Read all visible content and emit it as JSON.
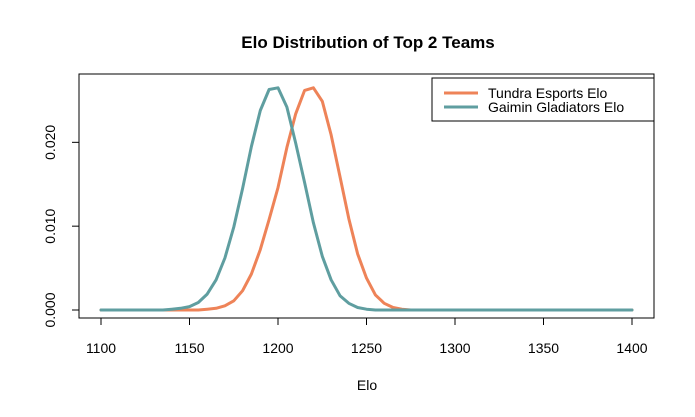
{
  "chart_data": {
    "type": "line",
    "title": "Elo Distribution of Top 2 Teams",
    "xlabel": "Elo",
    "ylabel": "",
    "xlim": [
      1100,
      1400
    ],
    "ylim": [
      0,
      0.0266
    ],
    "x_ticks": [
      1100,
      1150,
      1200,
      1250,
      1300,
      1350,
      1400
    ],
    "x_tick_labels": [
      "1100",
      "1150",
      "1200",
      "1250",
      "1300",
      "1350",
      "1400"
    ],
    "y_ticks": [
      0.0,
      0.01,
      0.02
    ],
    "y_tick_labels": [
      "0.000",
      "0.010",
      "0.020"
    ],
    "grid": false,
    "legend_position": "top-right",
    "series": [
      {
        "name": "Tundra Esports Elo",
        "color": "#ee8358",
        "peak_x": 1217,
        "sd": 15,
        "x": [
          1100,
          1105,
          1110,
          1115,
          1120,
          1125,
          1130,
          1135,
          1140,
          1145,
          1150,
          1155,
          1160,
          1165,
          1170,
          1175,
          1180,
          1185,
          1190,
          1195,
          1200,
          1205,
          1210,
          1215,
          1220,
          1225,
          1230,
          1235,
          1240,
          1245,
          1250,
          1255,
          1260,
          1265,
          1270,
          1275,
          1280,
          1285,
          1290,
          1295,
          1300,
          1305,
          1310,
          1315,
          1320,
          1325,
          1330,
          1335,
          1340,
          1345,
          1350,
          1355,
          1360,
          1365,
          1370,
          1375,
          1380,
          1385,
          1390,
          1395,
          1400
        ],
        "values": [
          0,
          0,
          0,
          0,
          0,
          0,
          0,
          0,
          0,
          0,
          0,
          0,
          0.0001,
          0.0002,
          0.0005,
          0.0011,
          0.0023,
          0.0043,
          0.0072,
          0.0108,
          0.0146,
          0.0194,
          0.0234,
          0.0262,
          0.0265,
          0.0249,
          0.0209,
          0.0159,
          0.0109,
          0.0067,
          0.0038,
          0.0018,
          0.0008,
          0.0003,
          0.0001,
          0,
          0,
          0,
          0,
          0,
          0,
          0,
          0,
          0,
          0,
          0,
          0,
          0,
          0,
          0,
          0,
          0,
          0,
          0,
          0,
          0,
          0,
          0,
          0,
          0,
          0
        ]
      },
      {
        "name": "Gaimin Gladiators Elo",
        "color": "#5f9ea0",
        "peak_x": 1198,
        "sd": 15,
        "x": [
          1100,
          1105,
          1110,
          1115,
          1120,
          1125,
          1130,
          1135,
          1140,
          1145,
          1150,
          1155,
          1160,
          1165,
          1170,
          1175,
          1180,
          1185,
          1190,
          1195,
          1200,
          1205,
          1210,
          1215,
          1220,
          1225,
          1230,
          1235,
          1240,
          1245,
          1250,
          1255,
          1260,
          1265,
          1270,
          1275,
          1280,
          1285,
          1290,
          1295,
          1300,
          1305,
          1310,
          1315,
          1320,
          1325,
          1330,
          1335,
          1340,
          1345,
          1350,
          1355,
          1360,
          1365,
          1370,
          1375,
          1380,
          1385,
          1390,
          1395,
          1400
        ],
        "values": [
          0,
          0,
          0,
          0,
          0,
          0,
          0,
          0,
          0.0001,
          0.0002,
          0.0004,
          0.0009,
          0.0019,
          0.0036,
          0.0062,
          0.0099,
          0.0145,
          0.0195,
          0.0238,
          0.0263,
          0.0265,
          0.0242,
          0.0199,
          0.0152,
          0.0104,
          0.0064,
          0.0036,
          0.0017,
          0.0008,
          0.0003,
          0.0001,
          0,
          0,
          0,
          0,
          0,
          0,
          0,
          0,
          0,
          0,
          0,
          0,
          0,
          0,
          0,
          0,
          0,
          0,
          0,
          0,
          0,
          0,
          0,
          0,
          0,
          0,
          0,
          0,
          0,
          0
        ]
      }
    ]
  }
}
